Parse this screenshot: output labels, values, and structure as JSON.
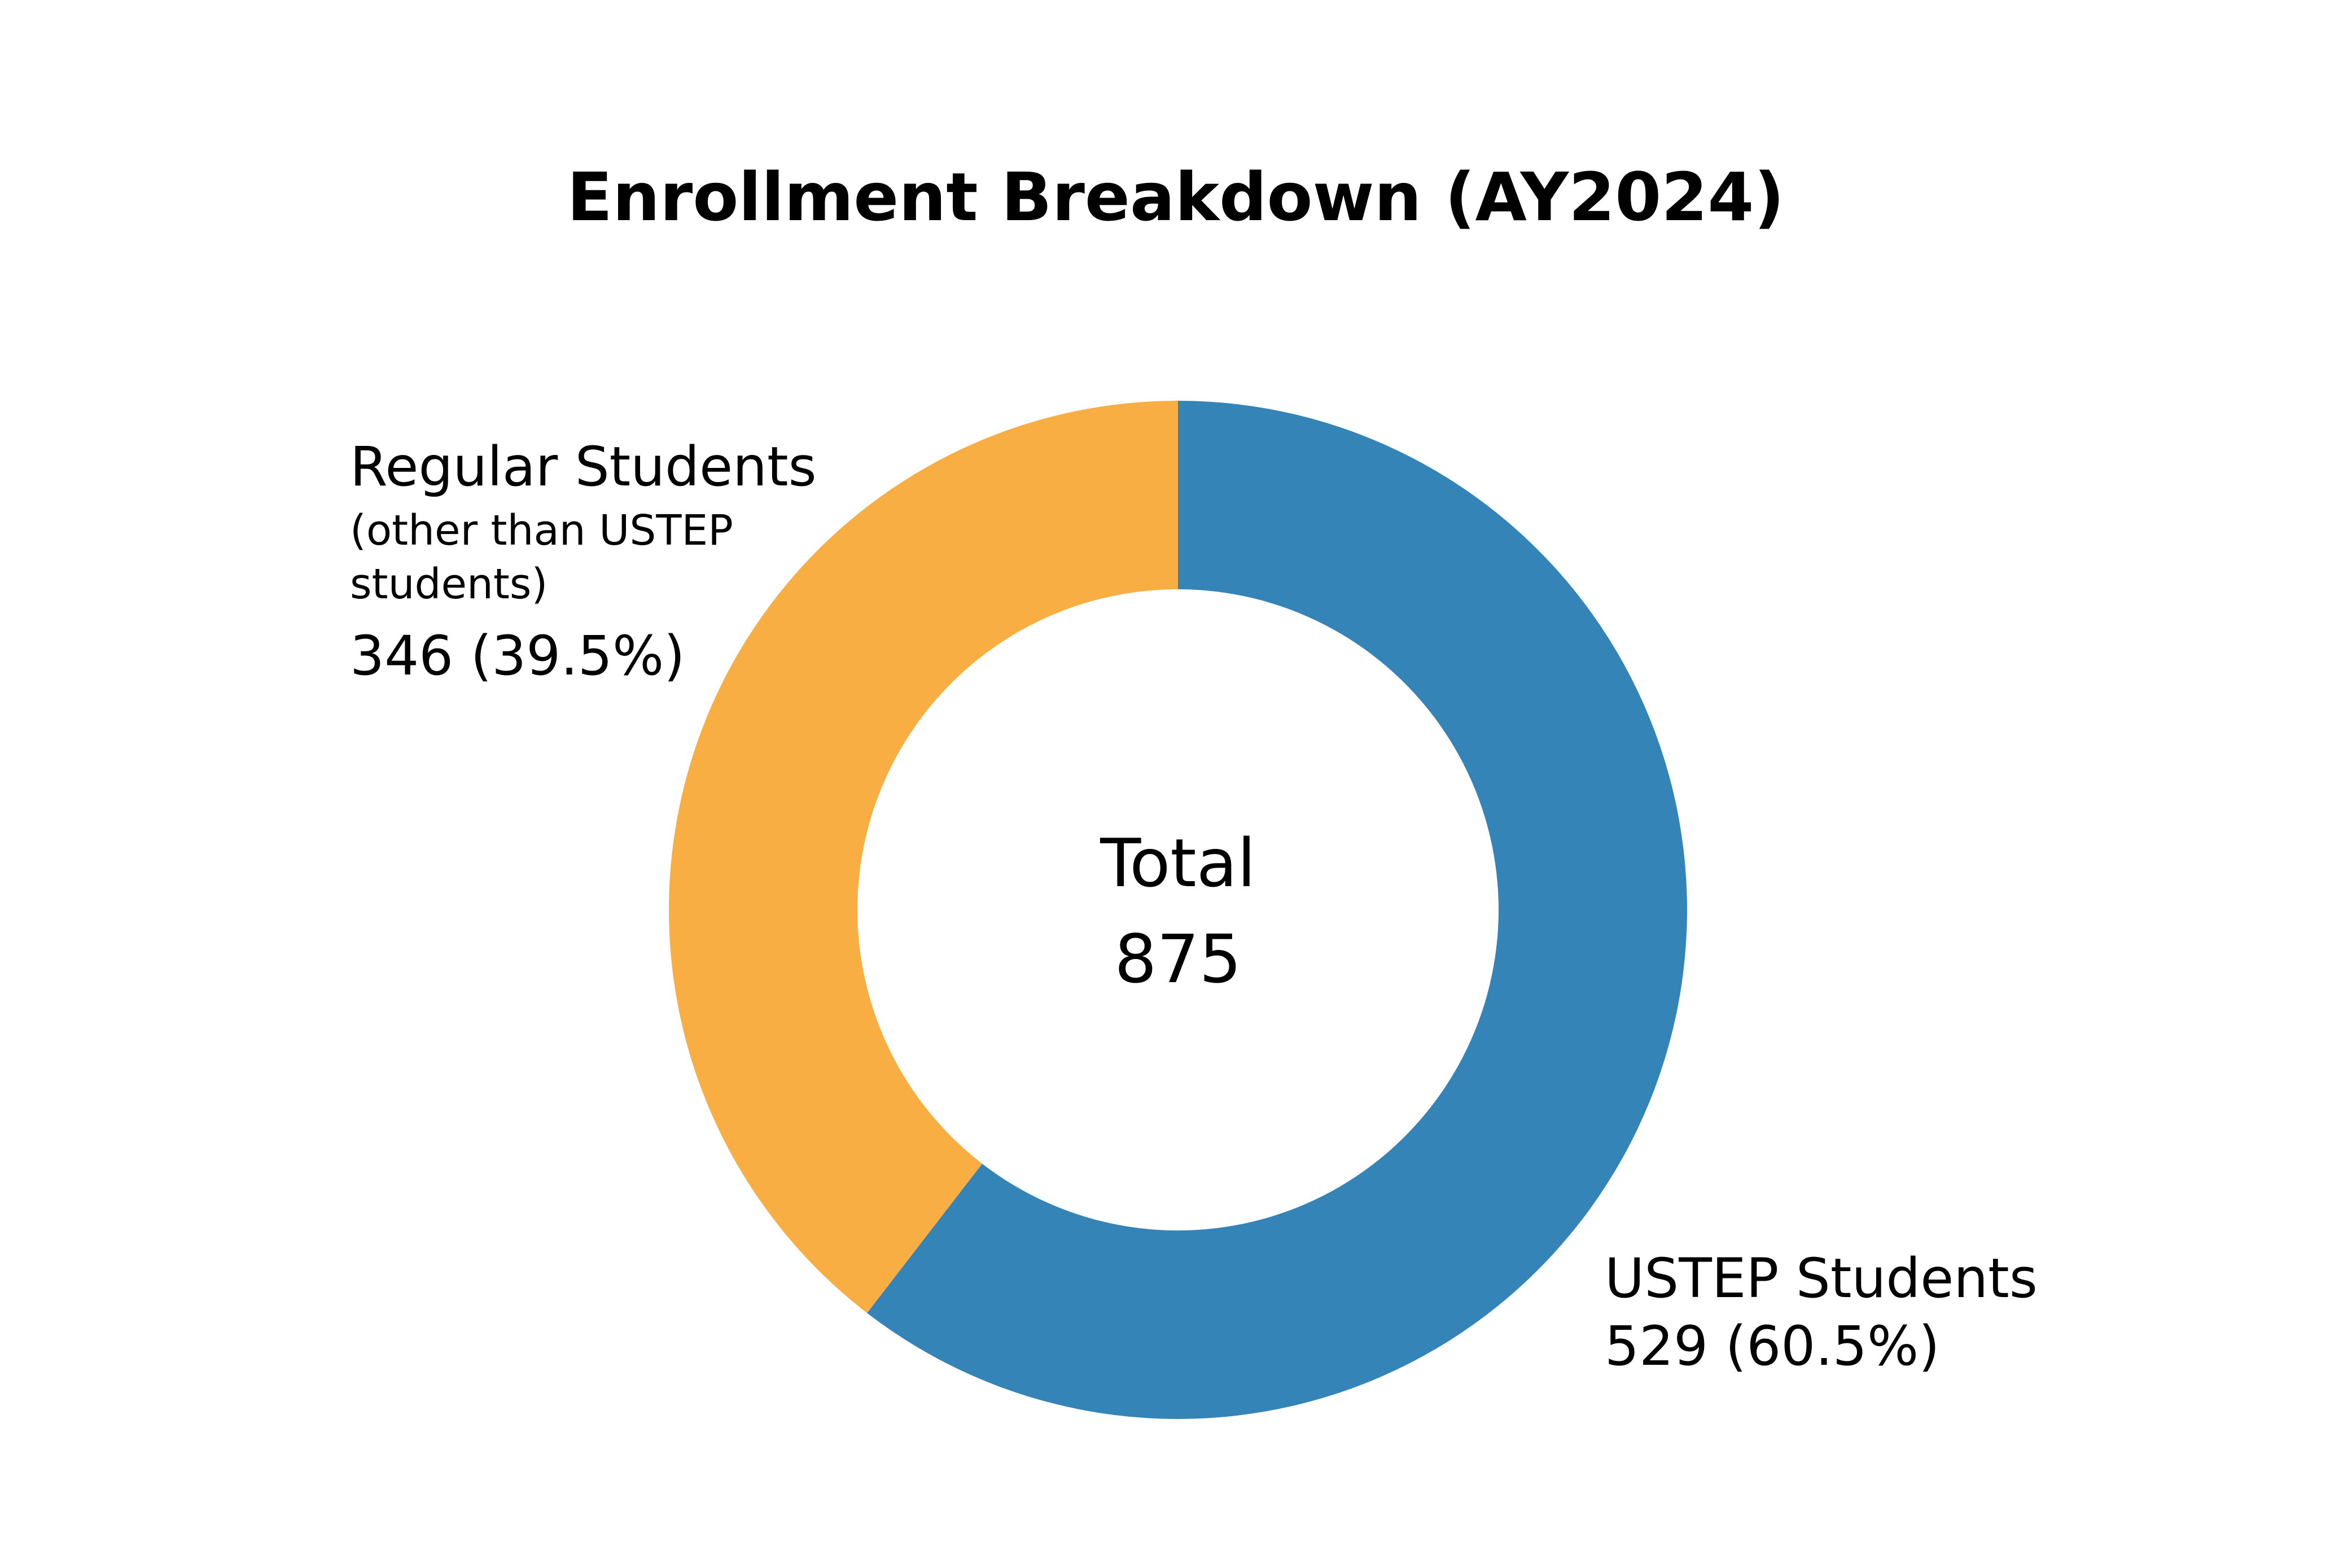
{
  "chart_data": {
    "type": "pie",
    "variant": "donut",
    "title": "Enrollment Breakdown (AY2024)",
    "center_text": [
      "Total",
      "875"
    ],
    "total": 875,
    "start_angle": "12 o'clock",
    "direction": "clockwise",
    "slices": [
      {
        "label": "USTEP Students",
        "note": "",
        "value": 529,
        "percent_text": "529 (60.5%)",
        "color": "#3584b8",
        "label_position": "bottom-right"
      },
      {
        "label": "Regular Students",
        "note": [
          "(other than USTEP",
          "students)"
        ],
        "value": 346,
        "percent_text": "346 (39.5%)",
        "color": "#f9ae43",
        "label_position": "top-left"
      }
    ]
  }
}
